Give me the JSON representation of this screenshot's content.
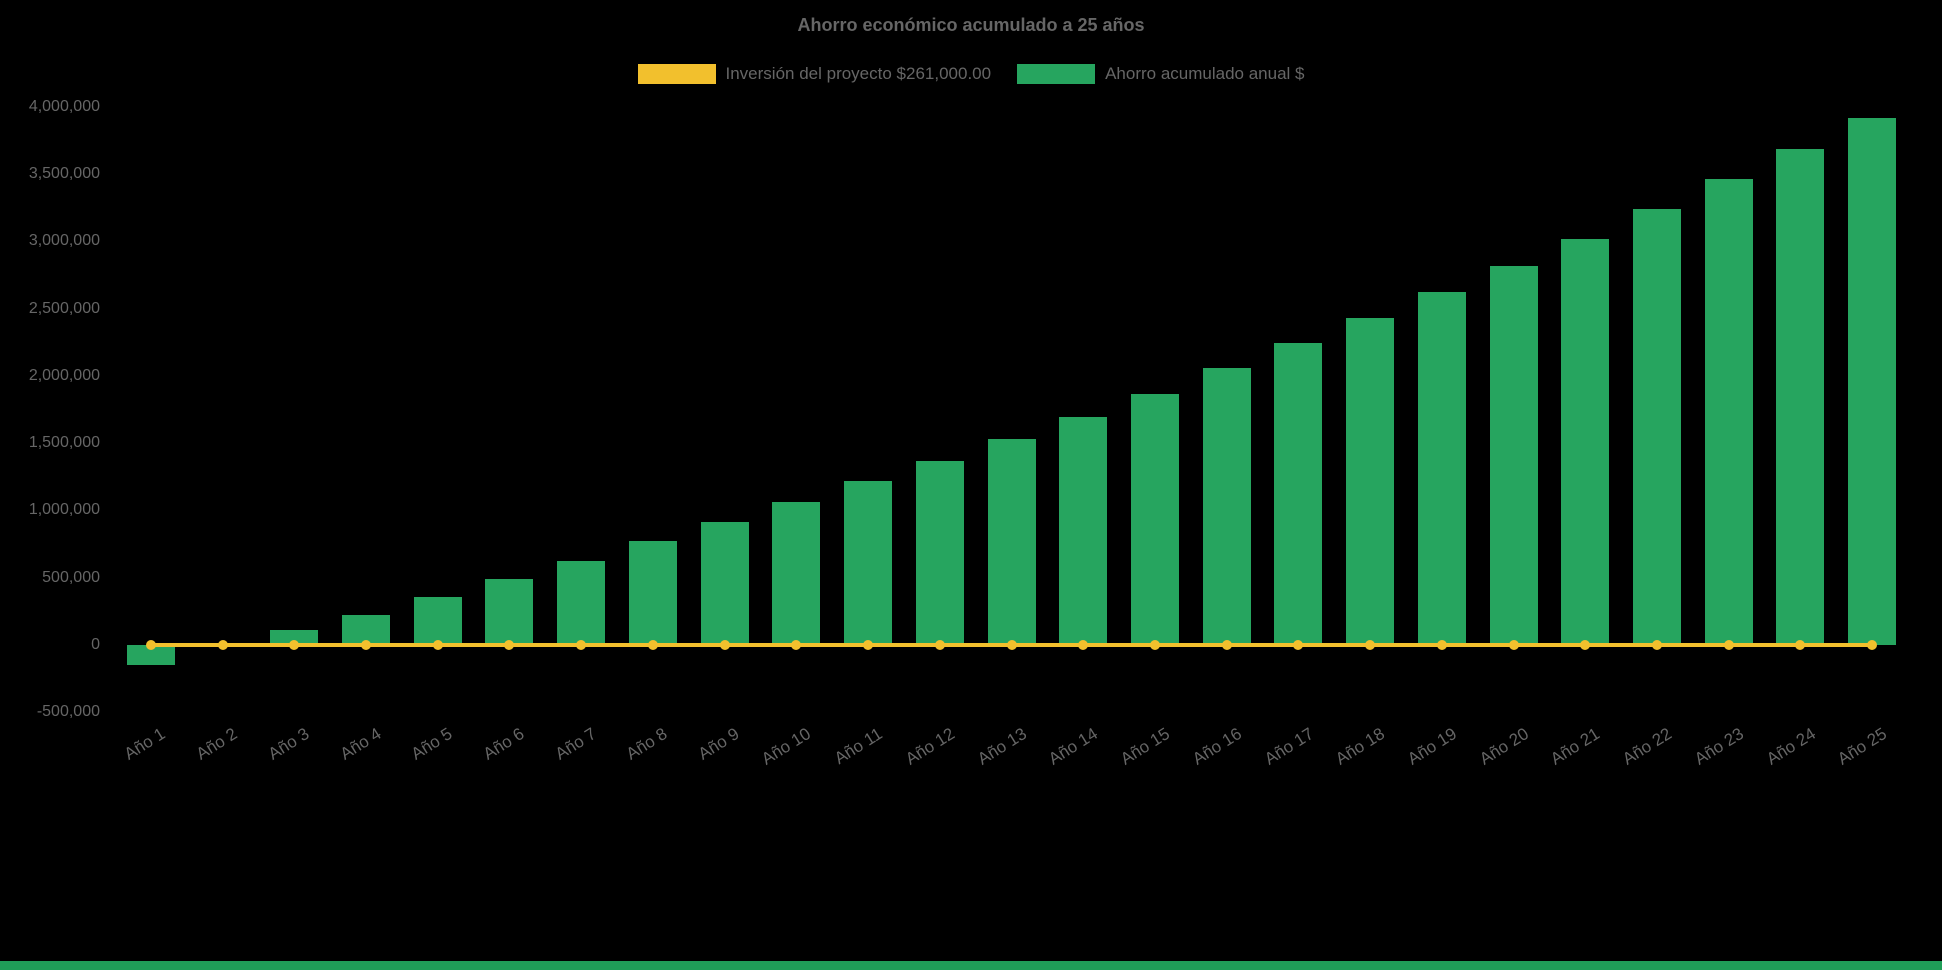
{
  "chart_data": {
    "type": "bar",
    "title": "Ahorro económico acumulado a 25 años",
    "categories": [
      "Año 1",
      "Año 2",
      "Año 3",
      "Año 4",
      "Año 5",
      "Año 6",
      "Año 7",
      "Año 8",
      "Año 9",
      "Año 10",
      "Año 11",
      "Año 12",
      "Año 13",
      "Año 14",
      "Año 15",
      "Año 16",
      "Año 17",
      "Año 18",
      "Año 19",
      "Año 20",
      "Año 21",
      "Año 22",
      "Año 23",
      "Año 24",
      "Año 25"
    ],
    "series": [
      {
        "name": "Inversión del proyecto $261,000.00",
        "type": "line",
        "color": "#f2c02d",
        "values": [
          0,
          0,
          0,
          0,
          0,
          0,
          0,
          0,
          0,
          0,
          0,
          0,
          0,
          0,
          0,
          0,
          0,
          0,
          0,
          0,
          0,
          0,
          0,
          0,
          0
        ]
      },
      {
        "name": "Ahorro acumulado anual $",
        "type": "bar",
        "color": "#26a55f",
        "values": [
          -150000,
          10000,
          110000,
          225000,
          355000,
          490000,
          625000,
          770000,
          915000,
          1060000,
          1215000,
          1370000,
          1530000,
          1695000,
          1865000,
          2055000,
          2245000,
          2430000,
          2625000,
          2820000,
          3020000,
          3240000,
          3465000,
          3690000,
          3920000
        ]
      }
    ],
    "ylim": [
      -500000,
      4000000
    ],
    "ytick_values": [
      4000000,
      3500000,
      3000000,
      2500000,
      2000000,
      1500000,
      1000000,
      500000,
      0,
      -500000
    ],
    "ytick_labels": [
      "4,000,000",
      "3,500,000",
      "3,000,000",
      "2,500,000",
      "2,000,000",
      "1,500,000",
      "1,000,000",
      "500,000",
      "0",
      "-500,000"
    ],
    "xlabel": "",
    "ylabel": "",
    "grid": false,
    "legend_position": "top",
    "x_label_rotation_deg": -32
  },
  "colors": {
    "background": "#000000",
    "text": "#666666",
    "bar_green": "#26a55f",
    "line_yellow": "#f2c02d",
    "footer_strip": "#1f9e58"
  }
}
